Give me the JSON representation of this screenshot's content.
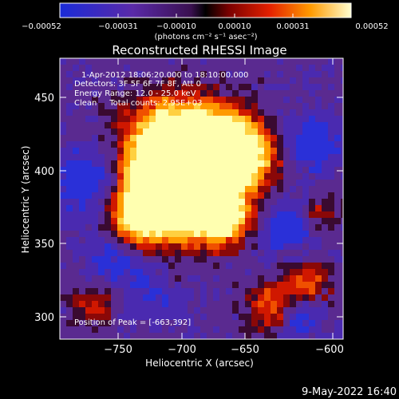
{
  "colorbar": {
    "ticks": [
      "−0.00052",
      "−0.00031",
      "−0.00010",
      "0.00010",
      "0.00031",
      "0.00052"
    ],
    "units_label": "(photons cm⁻² s⁻¹ asec⁻²)"
  },
  "title": "Reconstructed RHESSI Image",
  "annotations": {
    "time_range": "1-Apr-2012 18:06:20.000 to 18:10:00.000",
    "detectors": "Detectors: 3F 5F 6F 7F 8F, Att 0",
    "energy": "Energy Range: 12.0 - 25.0 keV",
    "clean": "Clean     Total counts: 2.95E+03",
    "peak": "Position of Peak = [-663,392]"
  },
  "axes": {
    "xlabel": "Heliocentric X (arcsec)",
    "ylabel": "Heliocentric Y (arcsec)",
    "xticks": [
      "−750",
      "−700",
      "−650",
      "−600"
    ],
    "yticks": [
      "450",
      "400",
      "350",
      "300"
    ],
    "xrange": [
      -785,
      -595
    ],
    "yrange": [
      285,
      480
    ]
  },
  "footer": {
    "timestamp": "9-May-2022 16:40"
  },
  "colors": {
    "background": "#000000",
    "text": "#ffffff"
  }
}
